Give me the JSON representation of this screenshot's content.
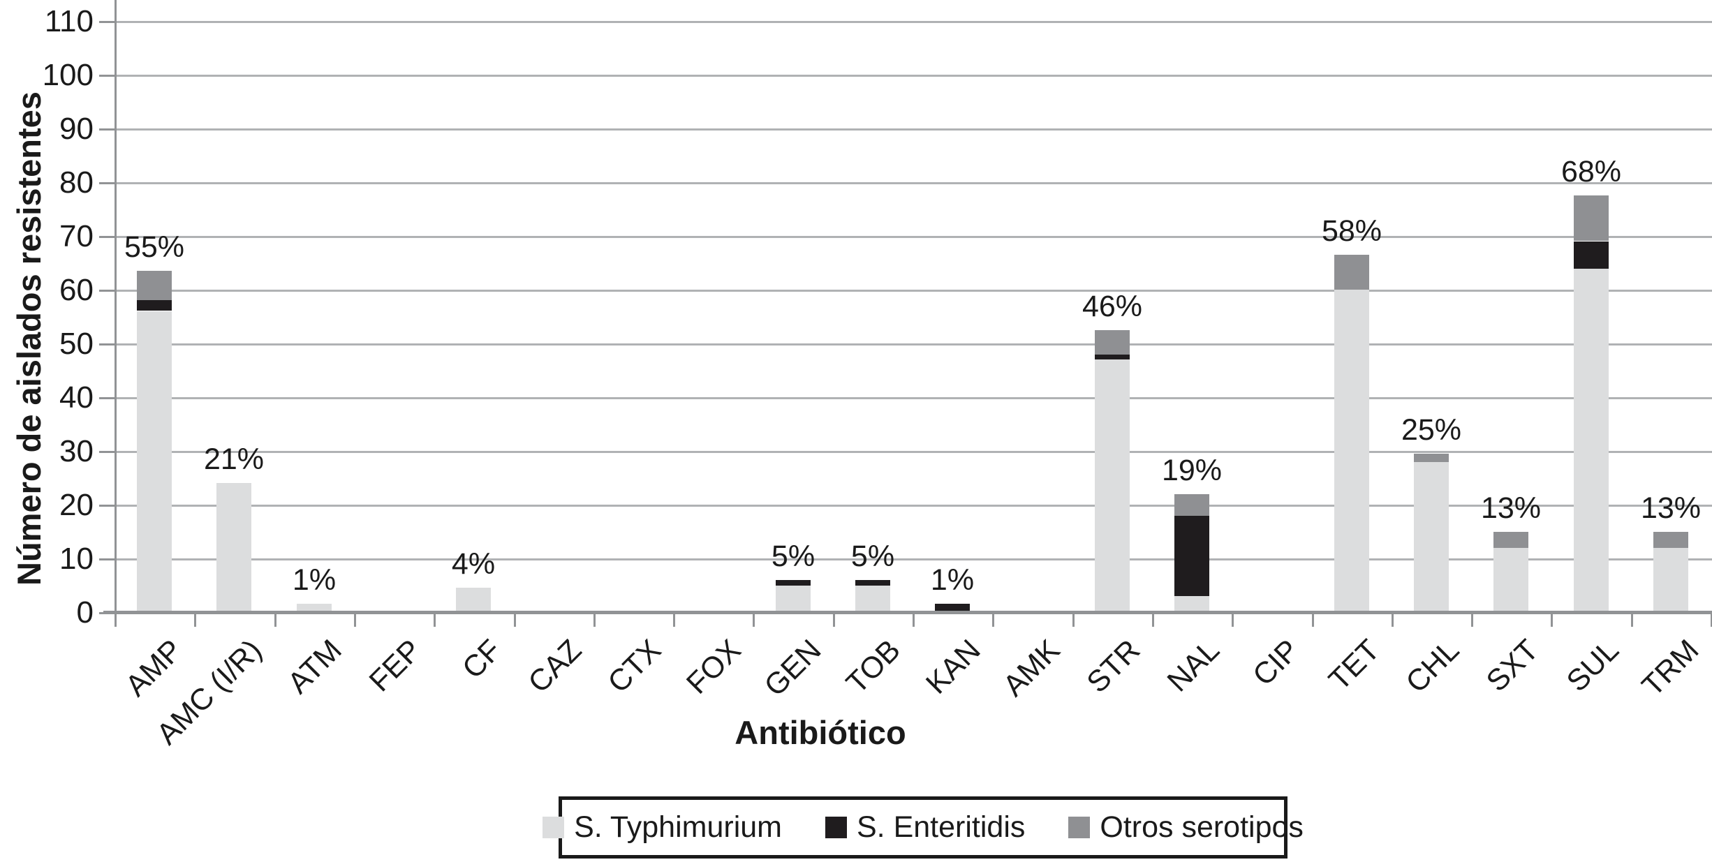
{
  "chart_data": {
    "type": "bar",
    "stacked": true,
    "title": "",
    "xlabel": "Antibiótico",
    "ylabel": "Número de aislados resistentes",
    "categories": [
      "AMP",
      "AMC (I/R)",
      "ATM",
      "FEP",
      "CF",
      "CAZ",
      "CTX",
      "FOX",
      "GEN",
      "TOB",
      "KAN",
      "AMK",
      "STR",
      "NAL",
      "CIP",
      "TET",
      "CHL",
      "SXT",
      "SUL",
      "TRM"
    ],
    "series": [
      {
        "name": "S. Typhimurium",
        "color": "#dcddde",
        "values": [
          56,
          24,
          1.5,
          0,
          4.5,
          0,
          0,
          0,
          5,
          5,
          0,
          0,
          47,
          3,
          0,
          60,
          28,
          12,
          64,
          12
        ]
      },
      {
        "name": "S. Enteritidis",
        "color": "#1f1c1e",
        "values": [
          2,
          0,
          0,
          0,
          0,
          0,
          0,
          0,
          1,
          1,
          1.5,
          0,
          1,
          15,
          0,
          0,
          0,
          0,
          5,
          0
        ]
      },
      {
        "name": "Otros serotipos",
        "color": "#8f9093",
        "values": [
          5.5,
          0,
          0,
          0,
          0,
          0,
          0,
          0,
          0,
          0,
          0,
          0,
          4.5,
          4,
          0,
          6.5,
          1.5,
          3,
          8.5,
          3
        ]
      }
    ],
    "bar_labels": [
      "55%",
      "21%",
      "1%",
      "",
      "4%",
      "",
      "",
      "",
      "5%",
      "5%",
      "1%",
      "",
      "46%",
      "19%",
      "",
      "58%",
      "25%",
      "13%",
      "68%",
      "13%"
    ],
    "y_ticks": [
      0,
      10,
      20,
      30,
      40,
      50,
      60,
      70,
      80,
      90,
      100,
      110
    ],
    "ylim": [
      0,
      114
    ],
    "grid": true,
    "legend_position": "bottom"
  }
}
